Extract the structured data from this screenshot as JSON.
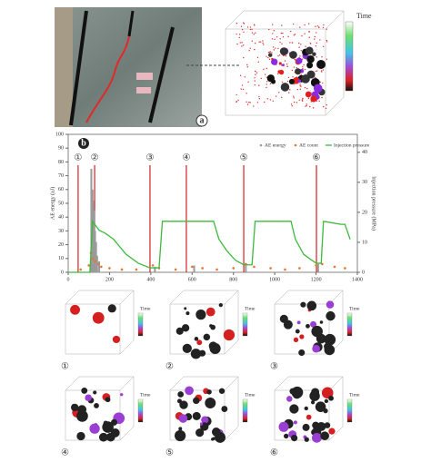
{
  "panel_a": {
    "label": "a",
    "legend_title": "Time"
  },
  "chart_data": {
    "type": "line",
    "panel_label": "b",
    "xlim": [
      0,
      1400
    ],
    "xticks": [
      0,
      200,
      400,
      600,
      800,
      1000,
      1200,
      1400
    ],
    "ylim": [
      0,
      100
    ],
    "yticks": [
      0,
      10,
      20,
      30,
      40,
      50,
      60,
      70,
      80,
      90,
      100
    ],
    "y2lim": [
      0,
      46
    ],
    "y2ticks": [
      0,
      10,
      20,
      30,
      40
    ],
    "y_label": "AE energy (aJ)",
    "y2_label": "Injection pressure (MPa)",
    "legend": "top-right",
    "series": [
      {
        "name": "AE energy",
        "type": "bar",
        "color": "#9a9a9a",
        "x": [
          112,
          118,
          122,
          126,
          130,
          135,
          140,
          150,
          420,
          610,
          860,
          1210
        ],
        "values": [
          75,
          60,
          52,
          45,
          30,
          22,
          12,
          8,
          4,
          5,
          6,
          6
        ]
      },
      {
        "name": "AE count",
        "type": "scatter",
        "color": "#e8772e",
        "x": [
          60,
          100,
          110,
          120,
          130,
          145,
          160,
          200,
          260,
          330,
          410,
          440,
          520,
          600,
          650,
          720,
          800,
          860,
          900,
          980,
          1050,
          1120,
          1200,
          1230,
          1290,
          1340
        ],
        "values": [
          2,
          5,
          14,
          10,
          8,
          6,
          4,
          3,
          2,
          2,
          5,
          3,
          2,
          4,
          3,
          2,
          3,
          6,
          4,
          3,
          2,
          3,
          5,
          6,
          4,
          3
        ]
      },
      {
        "name": "Injection pressure",
        "type": "line",
        "color": "#3cba3c",
        "axis": "y2",
        "x": [
          0,
          105,
          118,
          150,
          180,
          220,
          280,
          340,
          396,
          440,
          456,
          520,
          600,
          704,
          730,
          770,
          810,
          850,
          890,
          905,
          1000,
          1079,
          1100,
          1140,
          1180,
          1202,
          1225,
          1236,
          1320,
          1340,
          1365
        ],
        "values": [
          0,
          0,
          17,
          14,
          13,
          11,
          6,
          3,
          1.5,
          1.5,
          17,
          17,
          17,
          17,
          11,
          7,
          4,
          2.5,
          2.5,
          17,
          17,
          17,
          11,
          6,
          4,
          3,
          3,
          17,
          16,
          16,
          11
        ]
      }
    ],
    "stages": {
      "labels": [
        "①",
        "②",
        "③",
        "④",
        "⑤",
        "⑥"
      ],
      "x": [
        48,
        128,
        396,
        572,
        850,
        1202
      ]
    }
  },
  "subpanels": [
    {
      "label": "①",
      "legend_title": "Time"
    },
    {
      "label": "②",
      "legend_title": "Time"
    },
    {
      "label": "③",
      "legend_title": "Time"
    },
    {
      "label": "④",
      "legend_title": "Time"
    },
    {
      "label": "⑤",
      "legend_title": "Time"
    },
    {
      "label": "⑥",
      "legend_title": "Time"
    }
  ]
}
